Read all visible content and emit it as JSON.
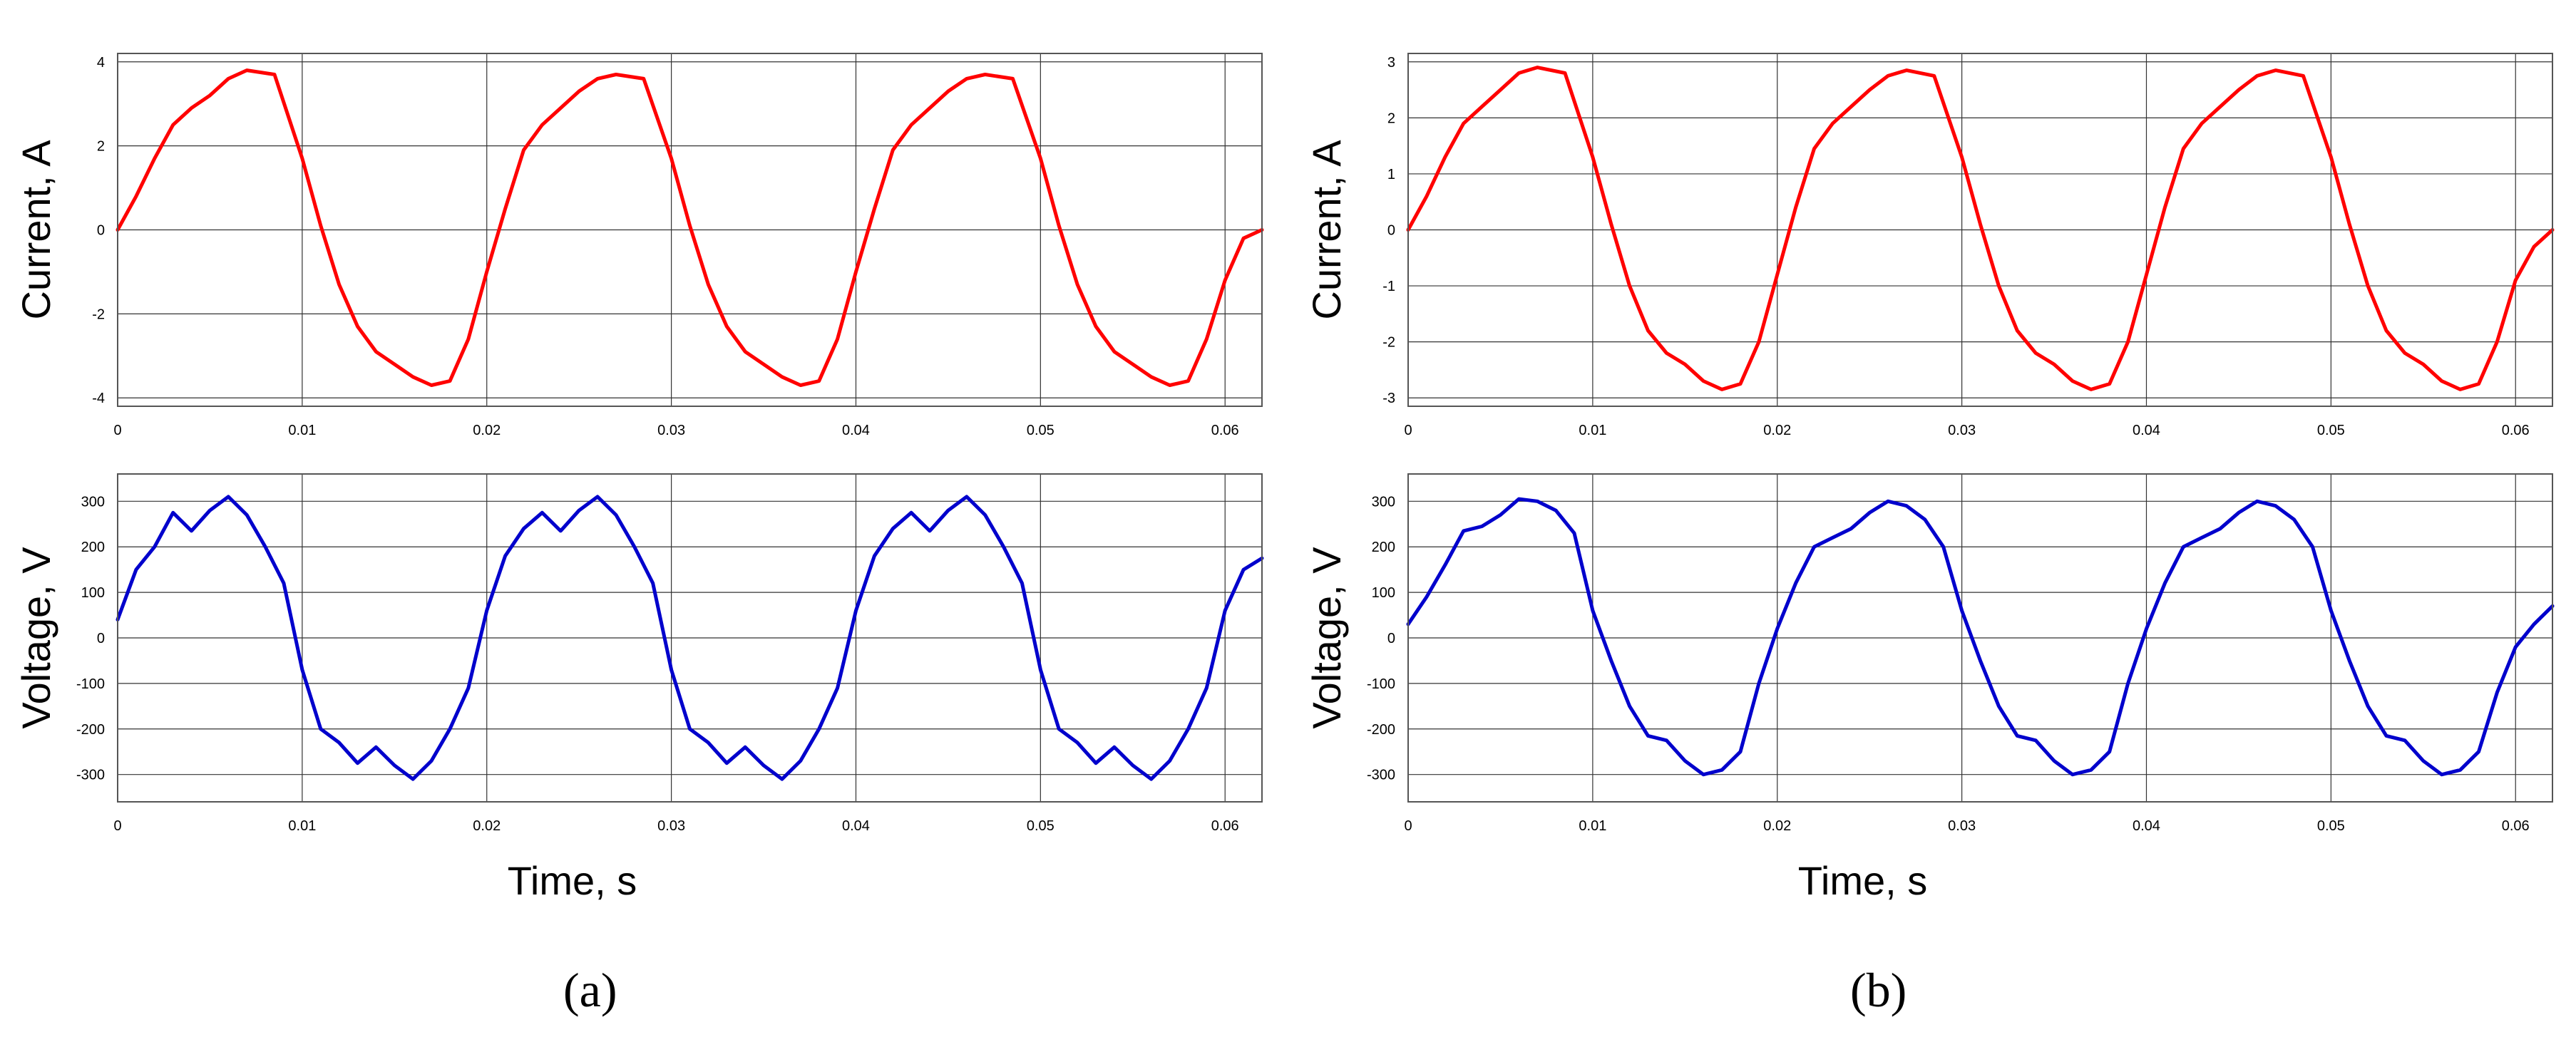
{
  "figure": {
    "panel_labels": [
      "(a)",
      "(b)"
    ]
  },
  "chart_data": [
    {
      "type": "line",
      "panel": "(a)",
      "ylabel": "Current, A",
      "xlim": [
        0,
        0.062
      ],
      "ylim": [
        -4.2,
        4.2
      ],
      "yticks": [
        -4,
        -2,
        0,
        2,
        4
      ],
      "ytick_labels": [
        "-4",
        "-2",
        "0",
        "2",
        "4"
      ],
      "xticks": [
        0,
        0.01,
        0.02,
        0.03,
        0.04,
        0.05,
        0.06
      ],
      "xtick_labels": [
        "0",
        "0.01",
        "0.02",
        "0.03",
        "0.04",
        "0.05",
        "0.06"
      ],
      "grid": true,
      "series": [
        {
          "color": "#ff0000",
          "x": [
            0,
            0.001,
            0.002,
            0.003,
            0.004,
            0.005,
            0.006,
            0.007,
            0.0085,
            0.01,
            0.011,
            0.012,
            0.013,
            0.014,
            0.015,
            0.016,
            0.017,
            0.018,
            0.019,
            0.02,
            0.021,
            0.022,
            0.023,
            0.024,
            0.025,
            0.026,
            0.027,
            0.0285,
            0.03,
            0.031,
            0.032,
            0.033,
            0.034,
            0.035,
            0.036,
            0.037,
            0.038,
            0.039,
            0.04,
            0.041,
            0.042,
            0.043,
            0.044,
            0.045,
            0.046,
            0.047,
            0.0485,
            0.05,
            0.051,
            0.052,
            0.053,
            0.054,
            0.055,
            0.056,
            0.057,
            0.058,
            0.059,
            0.06,
            0.061,
            0.062
          ],
          "y": [
            0,
            0.8,
            1.7,
            2.5,
            2.9,
            3.2,
            3.6,
            3.8,
            3.7,
            1.7,
            0.1,
            -1.3,
            -2.3,
            -2.9,
            -3.2,
            -3.5,
            -3.7,
            -3.6,
            -2.6,
            -1.0,
            0.5,
            1.9,
            2.5,
            2.9,
            3.3,
            3.6,
            3.7,
            3.6,
            1.7,
            0.1,
            -1.3,
            -2.3,
            -2.9,
            -3.2,
            -3.5,
            -3.7,
            -3.6,
            -2.6,
            -1.0,
            0.5,
            1.9,
            2.5,
            2.9,
            3.3,
            3.6,
            3.7,
            3.6,
            1.7,
            0.1,
            -1.3,
            -2.3,
            -2.9,
            -3.2,
            -3.5,
            -3.7,
            -3.6,
            -2.6,
            -1.2,
            -0.2,
            0
          ]
        }
      ]
    },
    {
      "type": "line",
      "panel": "(a)",
      "ylabel": "Voltage, V",
      "xlabel": "Time, s",
      "xlim": [
        0,
        0.062
      ],
      "ylim": [
        -360,
        360
      ],
      "yticks": [
        -300,
        -200,
        -100,
        0,
        100,
        200,
        300
      ],
      "ytick_labels": [
        "-300",
        "-200",
        "-100",
        "0",
        "100",
        "200",
        "300"
      ],
      "xticks": [
        0,
        0.01,
        0.02,
        0.03,
        0.04,
        0.05,
        0.06
      ],
      "xtick_labels": [
        "0",
        "0.01",
        "0.02",
        "0.03",
        "0.04",
        "0.05",
        "0.06"
      ],
      "grid": true,
      "series": [
        {
          "color": "#0000cc",
          "x": [
            0,
            0.001,
            0.002,
            0.003,
            0.004,
            0.005,
            0.006,
            0.007,
            0.008,
            0.009,
            0.01,
            0.011,
            0.012,
            0.013,
            0.014,
            0.015,
            0.016,
            0.017,
            0.018,
            0.019,
            0.02,
            0.021,
            0.022,
            0.023,
            0.024,
            0.025,
            0.026,
            0.027,
            0.028,
            0.029,
            0.03,
            0.031,
            0.032,
            0.033,
            0.034,
            0.035,
            0.036,
            0.037,
            0.038,
            0.039,
            0.04,
            0.041,
            0.042,
            0.043,
            0.044,
            0.045,
            0.046,
            0.047,
            0.048,
            0.049,
            0.05,
            0.051,
            0.052,
            0.053,
            0.054,
            0.055,
            0.056,
            0.057,
            0.058,
            0.059,
            0.06,
            0.061,
            0.062
          ],
          "y": [
            40,
            150,
            200,
            275,
            235,
            280,
            310,
            270,
            200,
            120,
            -70,
            -200,
            -230,
            -275,
            -240,
            -280,
            -310,
            -270,
            -200,
            -110,
            60,
            180,
            240,
            275,
            235,
            280,
            310,
            270,
            200,
            120,
            -70,
            -200,
            -230,
            -275,
            -240,
            -280,
            -310,
            -270,
            -200,
            -110,
            60,
            180,
            240,
            275,
            235,
            280,
            310,
            270,
            200,
            120,
            -70,
            -200,
            -230,
            -275,
            -240,
            -280,
            -310,
            -270,
            -200,
            -110,
            60,
            150,
            175
          ]
        }
      ]
    },
    {
      "type": "line",
      "panel": "(b)",
      "ylabel": "Current, A",
      "xlim": [
        0,
        0.062
      ],
      "ylim": [
        -3.15,
        3.15
      ],
      "yticks": [
        -3,
        -2,
        -1,
        0,
        1,
        2,
        3
      ],
      "ytick_labels": [
        "-3",
        "-2",
        "-1",
        "0",
        "1",
        "2",
        "3"
      ],
      "xticks": [
        0,
        0.01,
        0.02,
        0.03,
        0.04,
        0.05,
        0.06
      ],
      "xtick_labels": [
        "0",
        "0.01",
        "0.02",
        "0.03",
        "0.04",
        "0.05",
        "0.06"
      ],
      "grid": true,
      "series": [
        {
          "color": "#ff0000",
          "x": [
            0,
            0.001,
            0.002,
            0.003,
            0.004,
            0.005,
            0.006,
            0.007,
            0.0085,
            0.01,
            0.011,
            0.012,
            0.013,
            0.014,
            0.015,
            0.016,
            0.017,
            0.018,
            0.019,
            0.02,
            0.021,
            0.022,
            0.023,
            0.024,
            0.025,
            0.026,
            0.027,
            0.0285,
            0.03,
            0.031,
            0.032,
            0.033,
            0.034,
            0.035,
            0.036,
            0.037,
            0.038,
            0.039,
            0.04,
            0.041,
            0.042,
            0.043,
            0.044,
            0.045,
            0.046,
            0.047,
            0.0485,
            0.05,
            0.051,
            0.052,
            0.053,
            0.054,
            0.055,
            0.056,
            0.057,
            0.058,
            0.059,
            0.06,
            0.061,
            0.062
          ],
          "y": [
            0,
            0.6,
            1.3,
            1.9,
            2.2,
            2.5,
            2.8,
            2.9,
            2.8,
            1.3,
            0.1,
            -1.0,
            -1.8,
            -2.2,
            -2.4,
            -2.7,
            -2.85,
            -2.75,
            -2.0,
            -0.8,
            0.4,
            1.45,
            1.9,
            2.2,
            2.5,
            2.75,
            2.85,
            2.75,
            1.3,
            0.1,
            -1.0,
            -1.8,
            -2.2,
            -2.4,
            -2.7,
            -2.85,
            -2.75,
            -2.0,
            -0.8,
            0.4,
            1.45,
            1.9,
            2.2,
            2.5,
            2.75,
            2.85,
            2.75,
            1.3,
            0.1,
            -1.0,
            -1.8,
            -2.2,
            -2.4,
            -2.7,
            -2.85,
            -2.75,
            -2.0,
            -0.9,
            -0.3,
            0
          ]
        }
      ]
    },
    {
      "type": "line",
      "panel": "(b)",
      "ylabel": "Voltage, V",
      "xlabel": "Time, s",
      "xlim": [
        0,
        0.062
      ],
      "ylim": [
        -360,
        360
      ],
      "yticks": [
        -300,
        -200,
        -100,
        0,
        100,
        200,
        300
      ],
      "ytick_labels": [
        "-300",
        "-200",
        "-100",
        "0",
        "100",
        "200",
        "300"
      ],
      "xticks": [
        0,
        0.01,
        0.02,
        0.03,
        0.04,
        0.05,
        0.06
      ],
      "xtick_labels": [
        "0",
        "0.01",
        "0.02",
        "0.03",
        "0.04",
        "0.05",
        "0.06"
      ],
      "grid": true,
      "series": [
        {
          "color": "#0000cc",
          "x": [
            0,
            0.001,
            0.002,
            0.003,
            0.004,
            0.005,
            0.006,
            0.007,
            0.008,
            0.009,
            0.01,
            0.011,
            0.012,
            0.013,
            0.014,
            0.015,
            0.016,
            0.017,
            0.018,
            0.019,
            0.02,
            0.021,
            0.022,
            0.023,
            0.024,
            0.025,
            0.026,
            0.027,
            0.028,
            0.029,
            0.03,
            0.031,
            0.032,
            0.033,
            0.034,
            0.035,
            0.036,
            0.037,
            0.038,
            0.039,
            0.04,
            0.041,
            0.042,
            0.043,
            0.044,
            0.045,
            0.046,
            0.047,
            0.048,
            0.049,
            0.05,
            0.051,
            0.052,
            0.053,
            0.054,
            0.055,
            0.056,
            0.057,
            0.058,
            0.059,
            0.06,
            0.061,
            0.062
          ],
          "y": [
            30,
            90,
            160,
            235,
            245,
            270,
            305,
            300,
            280,
            230,
            60,
            -50,
            -150,
            -215,
            -225,
            -270,
            -300,
            -290,
            -250,
            -100,
            20,
            120,
            200,
            220,
            240,
            275,
            300,
            290,
            260,
            200,
            60,
            -50,
            -150,
            -215,
            -225,
            -270,
            -300,
            -290,
            -250,
            -100,
            20,
            120,
            200,
            220,
            240,
            275,
            300,
            290,
            260,
            200,
            60,
            -50,
            -150,
            -215,
            -225,
            -270,
            -300,
            -290,
            -250,
            -120,
            -20,
            30,
            70
          ]
        }
      ]
    }
  ]
}
